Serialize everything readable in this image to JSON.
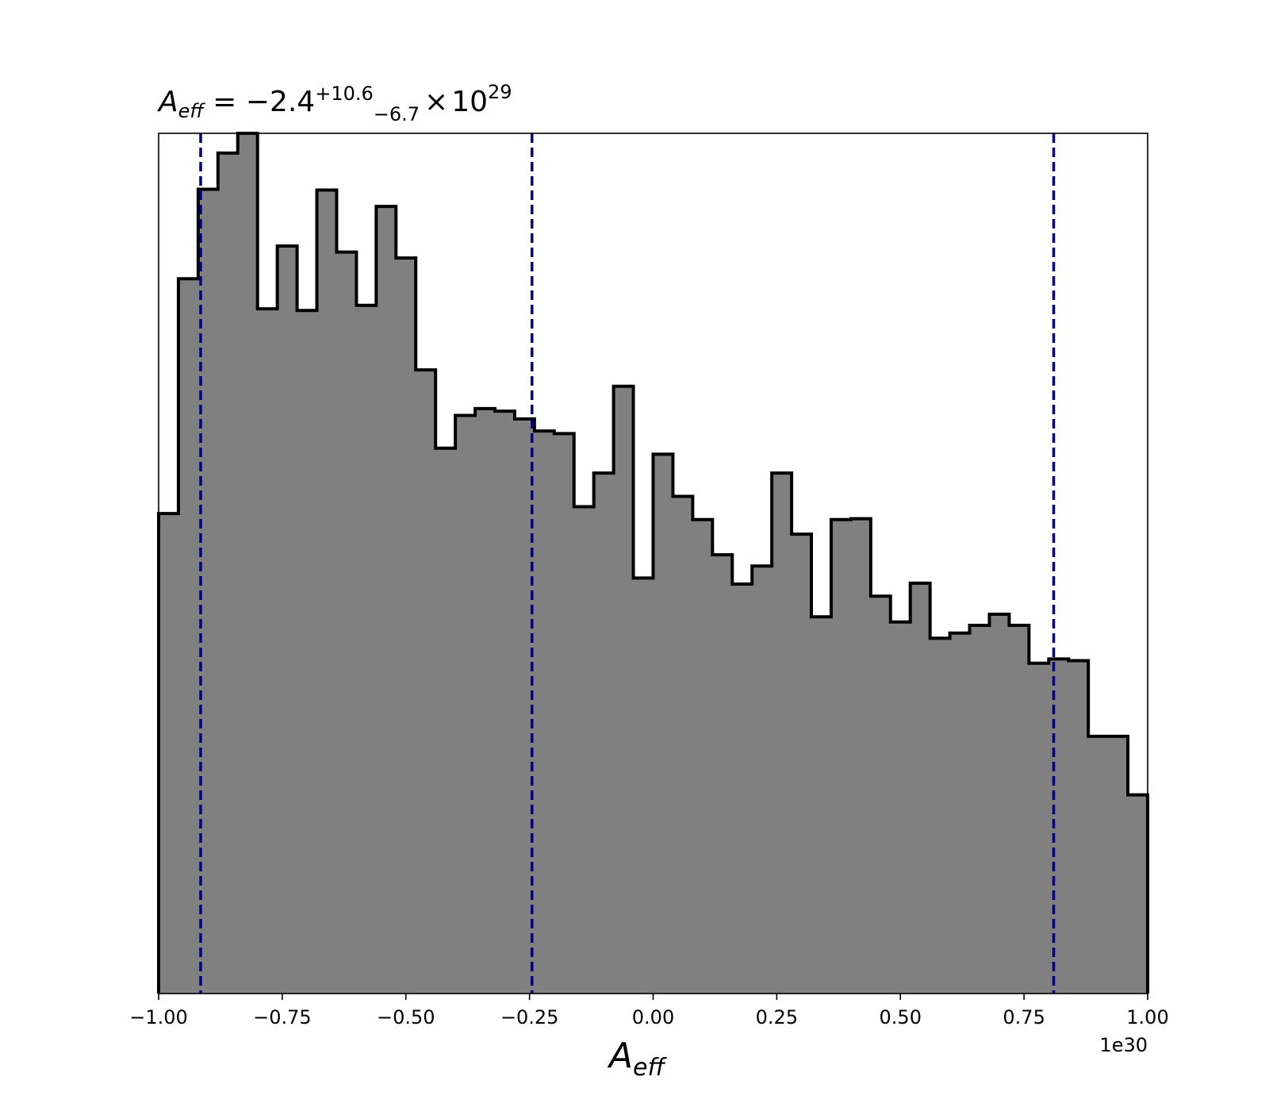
{
  "chart_data": {
    "type": "histogram",
    "title": {
      "symbol": "A",
      "symbol_sub": "eff",
      "equals": " = ",
      "value": "−2.4",
      "upper": "+10.6",
      "lower": "−6.7",
      "times": "×",
      "base": "10",
      "exponent": "29"
    },
    "xlabel": {
      "symbol": "A",
      "subscript": "eff"
    },
    "ylabel": "",
    "xlim": [
      -1.0,
      1.0
    ],
    "ylim": [
      0,
      1.0
    ],
    "x_offset_label": "1e30",
    "x_tick_values": [
      -1.0,
      -0.75,
      -0.5,
      -0.25,
      0.0,
      0.25,
      0.5,
      0.75,
      1.0
    ],
    "x_tick_labels": [
      "−1.00",
      "−0.75",
      "−0.50",
      "−0.25",
      "0.00",
      "0.25",
      "0.50",
      "0.75",
      "1.00"
    ],
    "y_ticks_visible": false,
    "grid": false,
    "bin_edges": [
      -1.0,
      -0.96,
      -0.92,
      -0.88,
      -0.84,
      -0.8,
      -0.76,
      -0.72,
      -0.68,
      -0.64,
      -0.6,
      -0.56,
      -0.52,
      -0.48,
      -0.44,
      -0.4,
      -0.36,
      -0.32,
      -0.28,
      -0.24,
      -0.2,
      -0.16,
      -0.12,
      -0.08,
      -0.04,
      0.0,
      0.04,
      0.08,
      0.12,
      0.16,
      0.2,
      0.24,
      0.28,
      0.32,
      0.36,
      0.4,
      0.44,
      0.48,
      0.52,
      0.56,
      0.6,
      0.64,
      0.68,
      0.72,
      0.76,
      0.8,
      0.84,
      0.88,
      0.92,
      0.96,
      1.0
    ],
    "counts": [
      0.558,
      0.831,
      0.935,
      0.977,
      1.0,
      0.796,
      0.869,
      0.794,
      0.934,
      0.862,
      0.8,
      0.915,
      0.855,
      0.725,
      0.634,
      0.672,
      0.68,
      0.677,
      0.668,
      0.654,
      0.651,
      0.566,
      0.605,
      0.706,
      0.483,
      0.627,
      0.578,
      0.551,
      0.51,
      0.476,
      0.497,
      0.605,
      0.534,
      0.438,
      0.551,
      0.552,
      0.462,
      0.432,
      0.477,
      0.413,
      0.419,
      0.428,
      0.441,
      0.428,
      0.384,
      0.389,
      0.387,
      0.299,
      0.299,
      0.231
    ],
    "fill_color": "#808080",
    "edge_color": "#000000",
    "vlines": [
      {
        "x": -0.915,
        "style": "dashed",
        "color": "#000080"
      },
      {
        "x": -0.245,
        "style": "dashed",
        "color": "#000080"
      },
      {
        "x": 0.81,
        "style": "dashed",
        "color": "#000080"
      }
    ]
  }
}
